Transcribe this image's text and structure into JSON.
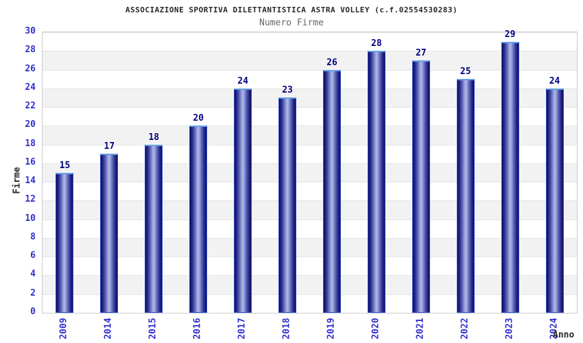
{
  "chart_data": {
    "type": "bar",
    "title": "ASSOCIAZIONE SPORTIVA DILETTANTISTICA ASTRA VOLLEY (c.f.02554530283)",
    "subtitle": "Numero Firme",
    "xlabel": "Anno",
    "ylabel": "Firme",
    "categories": [
      "2009",
      "2014",
      "2015",
      "2016",
      "2017",
      "2018",
      "2019",
      "2020",
      "2021",
      "2022",
      "2023",
      "2024"
    ],
    "values": [
      15,
      17,
      18,
      20,
      24,
      23,
      26,
      28,
      27,
      25,
      29,
      24
    ],
    "ylim": [
      0,
      30
    ],
    "ytick_step": 2,
    "legend_position": "none",
    "grid": "horizontal alternating bands every 2 units",
    "colors": {
      "title": "#282828",
      "subtitle": "#666666",
      "tick_label": "#3030cc",
      "value_label": "#000080",
      "bar_edge": "#0a0a5a",
      "bar_highlight": "#b2bae9",
      "bar_outline": "#2d51cc",
      "bar_cap": "#63a0e4",
      "band_alt": "#f2f2f2",
      "band_line": "#e4e4e4",
      "axis_border": "#cccccc"
    }
  }
}
